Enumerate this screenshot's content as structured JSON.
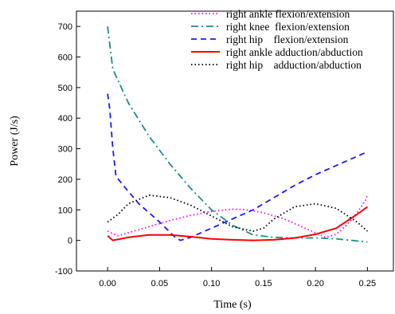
{
  "chart_data": {
    "type": "line",
    "title": "",
    "xlabel": "Time (s)",
    "ylabel": "Power (J/s)",
    "xlim": [
      -0.03,
      0.275
    ],
    "ylim": [
      -100,
      750
    ],
    "xticks": [
      0.0,
      0.05,
      0.1,
      0.15,
      0.2,
      0.25
    ],
    "xtick_labels": [
      "0.00",
      "0.05",
      "0.10",
      "0.15",
      "0.20",
      "0.25"
    ],
    "yticks": [
      -100,
      0,
      100,
      200,
      300,
      400,
      500,
      600,
      700
    ],
    "ytick_labels": [
      "-100",
      "0",
      "100",
      "200",
      "300",
      "400",
      "500",
      "600",
      "700"
    ],
    "grid": false,
    "legend_position": "top-right",
    "series": [
      {
        "name": "right ankle flexion/extension",
        "color": "#ff00ff",
        "dash": "dotted",
        "points": [
          [
            0.0,
            30
          ],
          [
            0.01,
            15
          ],
          [
            0.02,
            25
          ],
          [
            0.04,
            45
          ],
          [
            0.06,
            65
          ],
          [
            0.08,
            82
          ],
          [
            0.1,
            95
          ],
          [
            0.12,
            102
          ],
          [
            0.13,
            101
          ],
          [
            0.14,
            97
          ],
          [
            0.15,
            90
          ],
          [
            0.17,
            70
          ],
          [
            0.19,
            40
          ],
          [
            0.21,
            10
          ],
          [
            0.22,
            20
          ],
          [
            0.23,
            50
          ],
          [
            0.24,
            90
          ],
          [
            0.248,
            130
          ],
          [
            0.25,
            150
          ]
        ]
      },
      {
        "name": "right knee  flexion/extension",
        "color": "#1e8c8c",
        "dash": "dashdot",
        "points": [
          [
            0.0,
            700
          ],
          [
            0.005,
            560
          ],
          [
            0.02,
            450
          ],
          [
            0.04,
            340
          ],
          [
            0.06,
            250
          ],
          [
            0.08,
            170
          ],
          [
            0.1,
            100
          ],
          [
            0.12,
            50
          ],
          [
            0.14,
            18
          ],
          [
            0.16,
            10
          ],
          [
            0.18,
            8
          ],
          [
            0.2,
            8
          ],
          [
            0.22,
            5
          ],
          [
            0.25,
            -5
          ]
        ]
      },
      {
        "name": "right hip    flexion/extension",
        "color": "#1a1aff",
        "dash": "dashed",
        "points": [
          [
            0.0,
            480
          ],
          [
            0.002,
            430
          ],
          [
            0.005,
            300
          ],
          [
            0.008,
            210
          ],
          [
            0.015,
            180
          ],
          [
            0.03,
            120
          ],
          [
            0.05,
            60
          ],
          [
            0.065,
            10
          ],
          [
            0.07,
            0
          ],
          [
            0.08,
            10
          ],
          [
            0.1,
            40
          ],
          [
            0.12,
            70
          ],
          [
            0.14,
            100
          ],
          [
            0.16,
            140
          ],
          [
            0.18,
            180
          ],
          [
            0.2,
            215
          ],
          [
            0.22,
            245
          ],
          [
            0.25,
            290
          ]
        ]
      },
      {
        "name": "right ankle adduction/abduction",
        "color": "#ff0000",
        "dash": "solid",
        "points": [
          [
            0.0,
            15
          ],
          [
            0.005,
            0
          ],
          [
            0.02,
            10
          ],
          [
            0.04,
            18
          ],
          [
            0.06,
            18
          ],
          [
            0.08,
            12
          ],
          [
            0.1,
            5
          ],
          [
            0.12,
            2
          ],
          [
            0.14,
            0
          ],
          [
            0.16,
            2
          ],
          [
            0.18,
            8
          ],
          [
            0.2,
            20
          ],
          [
            0.22,
            40
          ],
          [
            0.24,
            85
          ],
          [
            0.25,
            110
          ]
        ]
      },
      {
        "name": "right hip    adduction/abduction",
        "color": "#000000",
        "dash": "dotted",
        "points": [
          [
            0.0,
            60
          ],
          [
            0.01,
            85
          ],
          [
            0.02,
            120
          ],
          [
            0.04,
            148
          ],
          [
            0.06,
            140
          ],
          [
            0.08,
            115
          ],
          [
            0.1,
            80
          ],
          [
            0.12,
            45
          ],
          [
            0.14,
            30
          ],
          [
            0.15,
            40
          ],
          [
            0.16,
            70
          ],
          [
            0.18,
            110
          ],
          [
            0.2,
            120
          ],
          [
            0.22,
            105
          ],
          [
            0.24,
            60
          ],
          [
            0.25,
            30
          ]
        ]
      }
    ]
  }
}
